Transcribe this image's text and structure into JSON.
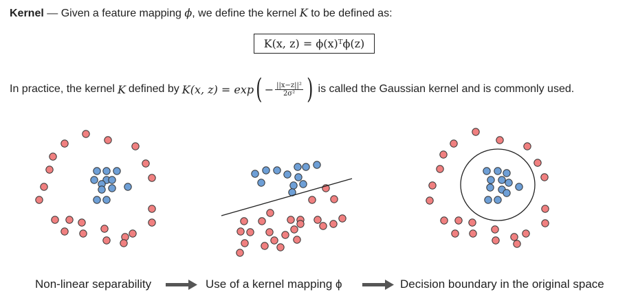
{
  "header": {
    "term": "Kernel",
    "dash": " — Given a feature mapping ",
    "phi": "ϕ",
    "mid": ", we define the kernel ",
    "K": "K",
    "tail": " to be defined as:"
  },
  "formula": "K(x, z) = ϕ(x)ᵀϕ(z)",
  "gaussian": {
    "prefix": "In practice, the kernel ",
    "K": "K",
    "mid": " defined by ",
    "lhs": "K(x, z) = exp",
    "minus": "−",
    "numerator": "||x−z||²",
    "denominator": "2σ²",
    "suffix": " is called the Gaussian kernel and is commonly used."
  },
  "captions": {
    "left": "Non-linear separability",
    "middle": "Use of a kernel mapping ϕ",
    "right": "Decision boundary in the original space"
  },
  "colors": {
    "blue": "#6e9fd6",
    "red": "#f08080",
    "stroke": "#222222",
    "arrow": "#555555"
  },
  "icons": {
    "arrow_1": "right-arrow-icon",
    "arrow_2": "right-arrow-icon"
  }
}
